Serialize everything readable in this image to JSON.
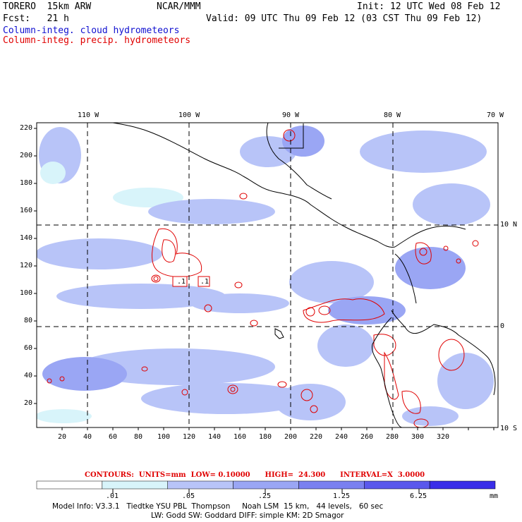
{
  "header": {
    "model_name": "TORERO  15km ARW",
    "org": "NCAR/MMM",
    "init": "Init: 12 UTC Wed 08 Feb 12",
    "fcst": "Fcst:   21 h",
    "valid": "Valid: 09 UTC Thu 09 Feb 12 (03 CST Thu 09 Feb 12)",
    "field_cloud": "Column-integ. cloud hydrometeors",
    "field_precip": "Column-integ. precip. hydrometeors"
  },
  "map": {
    "lon_labels": [
      "110 W",
      "100 W",
      "90 W",
      "80 W",
      "70 W"
    ],
    "lat_labels_right": [
      "10 N",
      "0",
      "10 S"
    ],
    "grid_y_labels": [
      "220",
      "200",
      "180",
      "160",
      "140",
      "120",
      "100",
      "80",
      "60",
      "40",
      "20"
    ],
    "grid_x_labels": [
      "20",
      "40",
      "60",
      "80",
      "100",
      "120",
      "140",
      "160",
      "180",
      "200",
      "220",
      "240",
      "260",
      "280",
      "300",
      "320"
    ],
    "contour_labels": [
      ".1",
      ".1"
    ]
  },
  "legend": {
    "contours_text": "CONTOURS:  UNITS=mm  LOW= 0.10000      HIGH=  24.300      INTERVAL=X  3.0000",
    "ticks": [
      ".01",
      ".05",
      ".25",
      "1.25",
      "6.25"
    ],
    "units": "mm",
    "colors": [
      "#ffffff",
      "#d8f4fa",
      "#b8c4f8",
      "#9aa6f4",
      "#7a80f0",
      "#5a58ec",
      "#3a2ee8"
    ]
  },
  "footer": {
    "line1": "Model Info: V3.3.1   Tiedtke YSU PBL  Thompson     Noah LSM  15 km,   44 levels,   60 sec",
    "line2": "LW: Godd SW: Goddard DIFF: simple KM: 2D Smagor"
  }
}
